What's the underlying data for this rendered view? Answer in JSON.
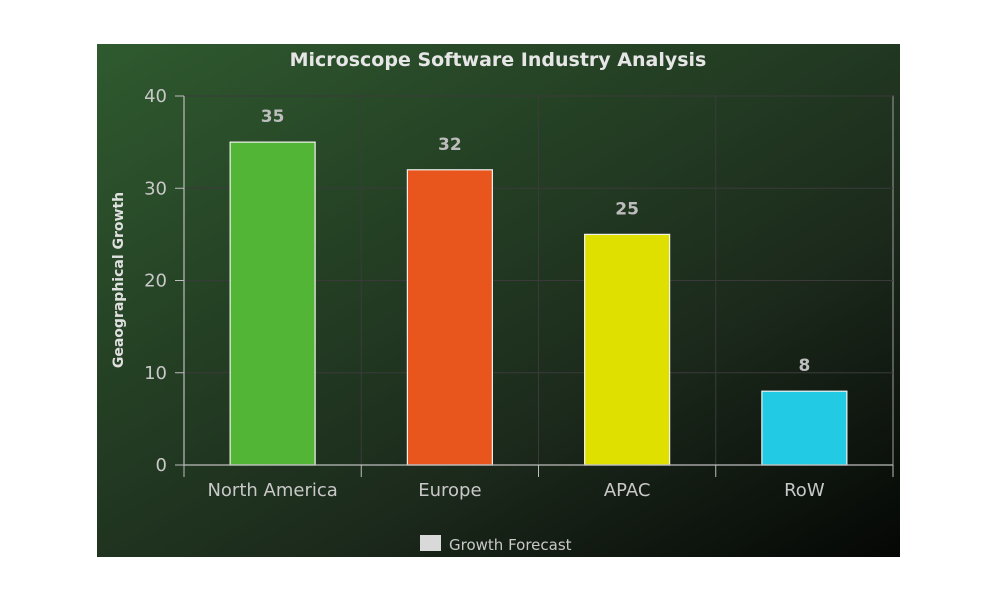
{
  "chart_data": {
    "type": "bar",
    "title": "Microscope Software Industry Analysis",
    "xlabel": "",
    "ylabel": "Geaographical Growth",
    "categories": [
      "North America",
      "Europe",
      "APAC",
      "RoW"
    ],
    "series": [
      {
        "name": "Growth Forecast",
        "values": [
          35,
          32,
          25,
          8
        ],
        "colors": [
          "#53b535",
          "#e8561e",
          "#dfe000",
          "#22cbe3"
        ]
      }
    ],
    "ylim": [
      0,
      40
    ],
    "yticks": [
      0,
      10,
      20,
      30,
      40
    ],
    "data_labels": true,
    "grid": true,
    "legend_position": "bottom-center",
    "legend_swatch_color": "#d9d9d9",
    "background_color": "#264426"
  }
}
